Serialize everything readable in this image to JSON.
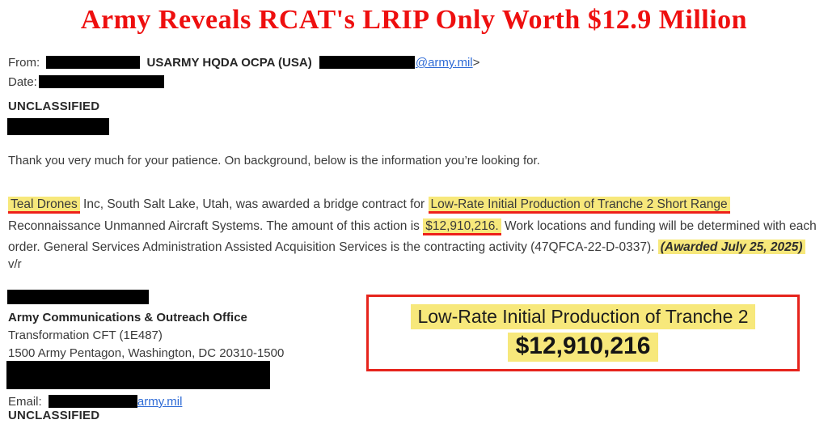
{
  "title": "Army Reveals RCAT's LRIP Only Worth $12.9 Million",
  "header": {
    "from_label": "From:",
    "from_org": "USARMY HQDA OCPA (USA)",
    "from_email_link": "@army.mil",
    "from_after_link": ">",
    "date_label": "Date:",
    "classification": "UNCLASSIFIED"
  },
  "body": {
    "intro": "Thank you very much for your patience. On background, below is the information you’re looking for.",
    "paragraph_lines": [
      {
        "segments": [
          {
            "text": "Teal Drones",
            "style": "hl"
          },
          {
            "text": " Inc, South Salt Lake, Utah, was awarded a bridge contract for ",
            "style": "plain"
          },
          {
            "text": "Low-Rate Initial Production of Tranche 2 Short Range",
            "style": "hl"
          }
        ]
      },
      {
        "segments": [
          {
            "text": "Reconnaissance Unmanned Aircraft Systems. The amount of this action is ",
            "style": "plain"
          },
          {
            "text": "$12,910,216.",
            "style": "hl"
          },
          {
            "text": " Work locations and funding will be determined with each",
            "style": "plain"
          }
        ]
      },
      {
        "segments": [
          {
            "text": "order. General Services Administration Assisted Acquisition Services is the contracting activity (47QFCA-22-D-0337). ",
            "style": "plain"
          },
          {
            "text": "(Awarded July 25, 2025)",
            "style": "hl-italic"
          }
        ]
      }
    ],
    "valediction": "v/r"
  },
  "signature": {
    "office": "Army Communications & Outreach Office",
    "dept": "Transformation CFT (1E487)",
    "address": "1500 Army Pentagon, Washington, DC 20310-1500",
    "email_label": "Email:",
    "email_link": "army.mil",
    "classification": "UNCLASSIFIED"
  },
  "callout": {
    "line1": "Low-Rate Initial Production of Tranche 2",
    "line2": "$12,910,216"
  },
  "colors": {
    "title-red": "#ee0f0f",
    "hl-yellow": "#f7e87b",
    "underline-red": "#ee2019",
    "link-blue": "#2e6bd6",
    "box-red": "#e6241c"
  }
}
